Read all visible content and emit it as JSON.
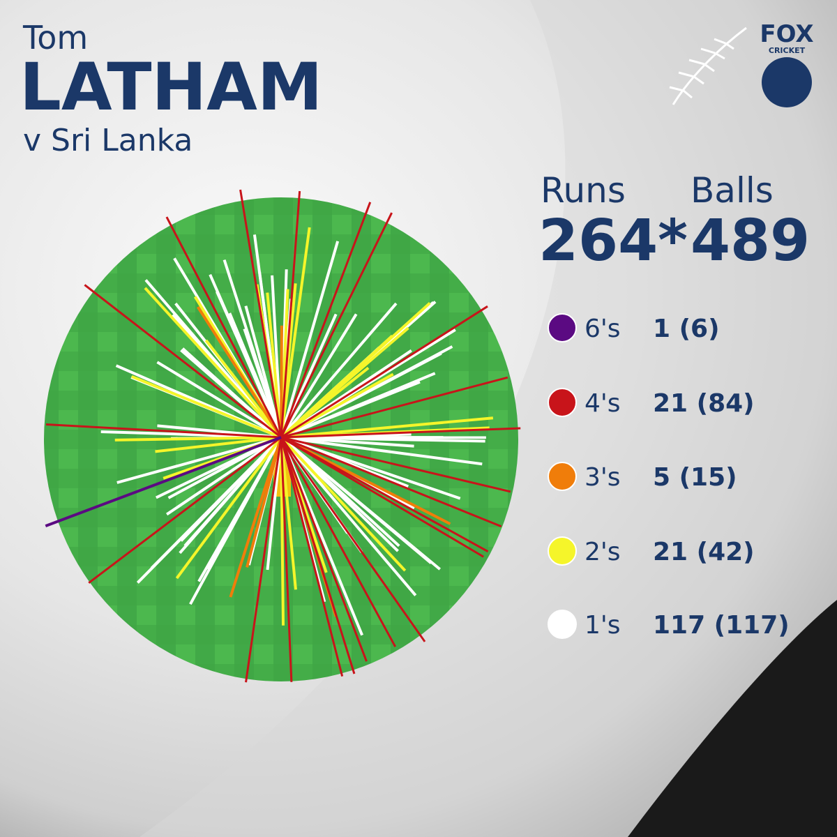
{
  "header": {
    "first_name": "Tom",
    "last_name": "LATHAM",
    "opponent": "v Sri Lanka"
  },
  "logo": {
    "line1": "FOX",
    "line2": "CRICKET"
  },
  "stats": {
    "runs_label": "Runs",
    "runs_value": "264*",
    "balls_label": "Balls",
    "balls_value": "489"
  },
  "legend": [
    {
      "label": "6's",
      "stat": "1 (6)",
      "color": "#5b0a82"
    },
    {
      "label": "4's",
      "stat": "21 (84)",
      "color": "#c8141a"
    },
    {
      "label": "3's",
      "stat": "5 (15)",
      "color": "#f07d0a"
    },
    {
      "label": "2's",
      "stat": "21 (42)",
      "color": "#f5f52a"
    },
    {
      "label": "1's",
      "stat": "117 (117)",
      "color": "#ffffff"
    }
  ]
}
